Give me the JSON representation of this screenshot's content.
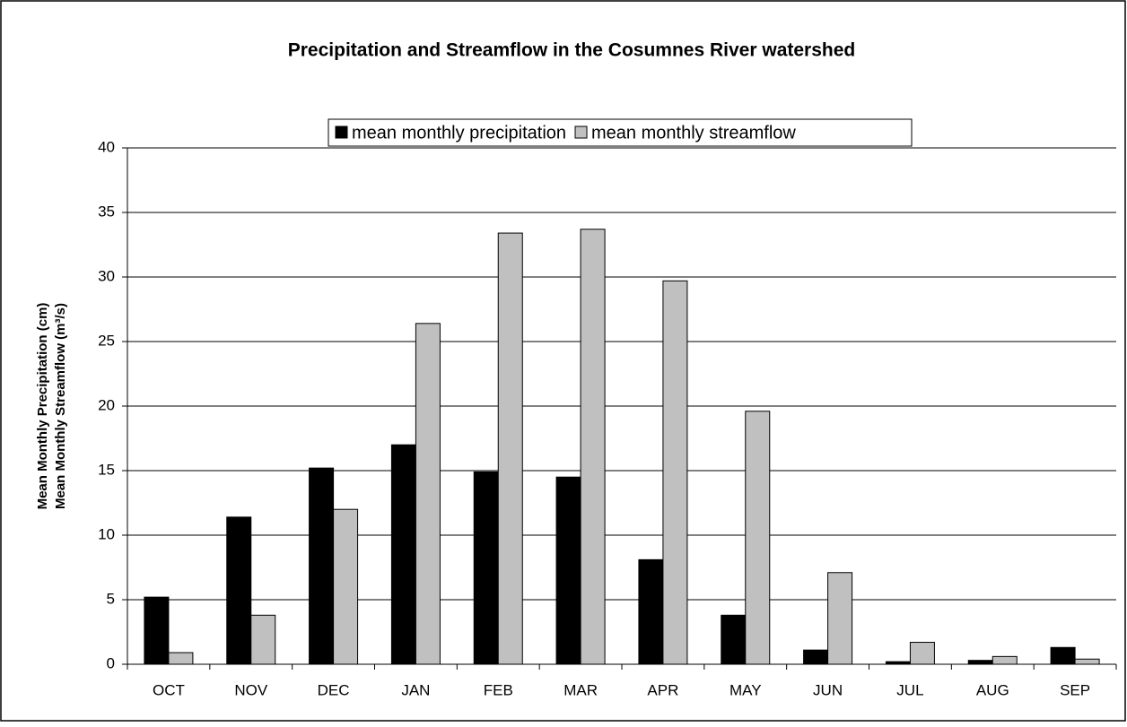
{
  "chart_data": {
    "type": "bar",
    "title": "Precipitation and Streamflow in the Cosumnes River watershed",
    "ylabel": [
      "Mean Monthly Precipitation (cm)",
      "Mean Monthly Streamflow (m³/s)"
    ],
    "categories": [
      "OCT",
      "NOV",
      "DEC",
      "JAN",
      "FEB",
      "MAR",
      "APR",
      "MAY",
      "JUN",
      "JUL",
      "AUG",
      "SEP"
    ],
    "series": [
      {
        "name": "mean monthly precipitation",
        "color": "#000000",
        "values": [
          5.2,
          11.4,
          15.2,
          17.0,
          14.9,
          14.5,
          8.1,
          3.8,
          1.1,
          0.2,
          0.3,
          1.3
        ]
      },
      {
        "name": "mean monthly streamflow",
        "color": "#c0c0c0",
        "values": [
          0.9,
          3.8,
          12.0,
          26.4,
          33.4,
          33.7,
          29.7,
          19.6,
          7.1,
          1.7,
          0.6,
          0.4
        ]
      }
    ],
    "ylim": [
      0,
      40
    ],
    "yticks": [
      0,
      5,
      10,
      15,
      20,
      25,
      30,
      35,
      40
    ],
    "grid": true,
    "legend": "top"
  }
}
